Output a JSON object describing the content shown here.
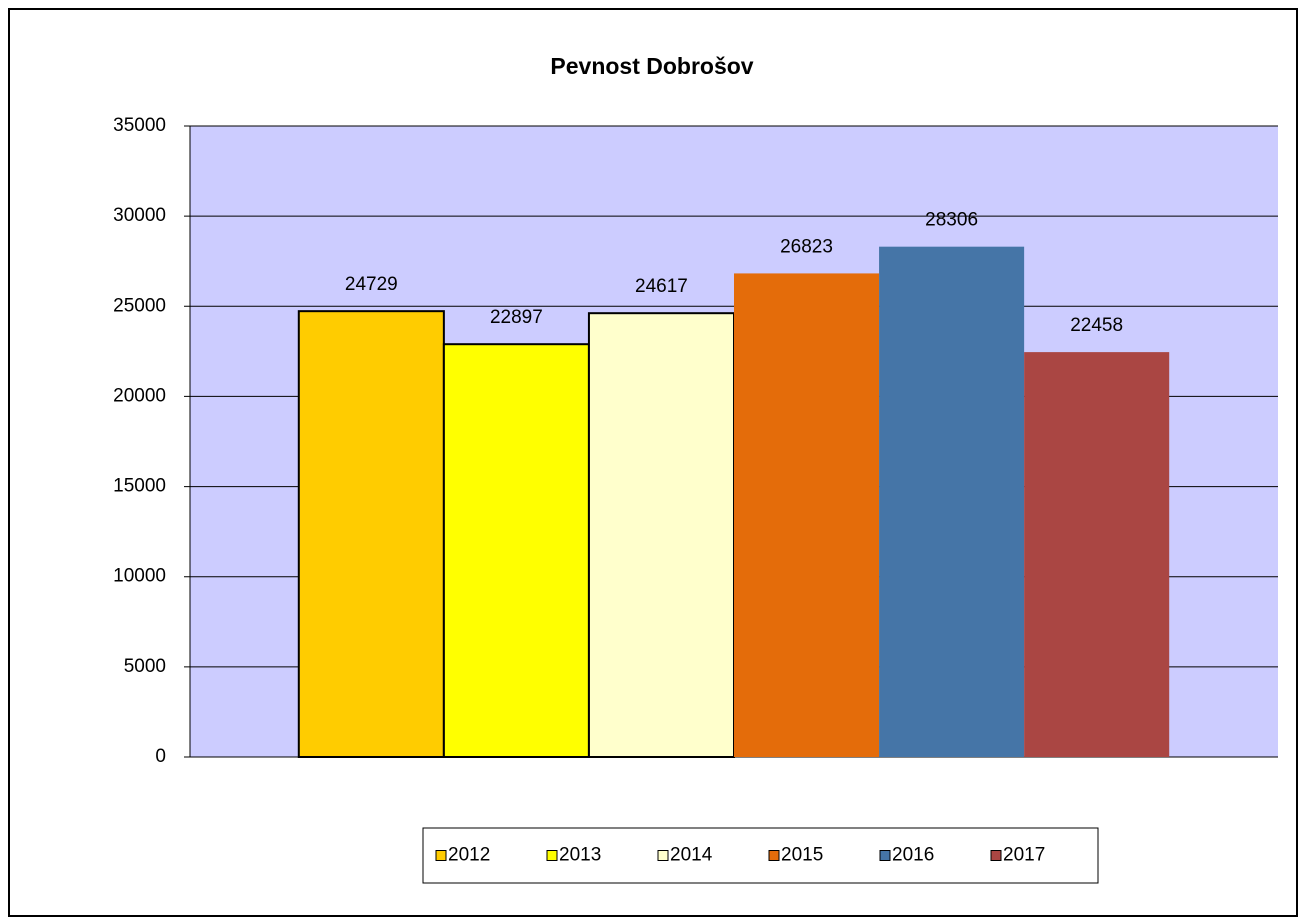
{
  "chart_data": {
    "type": "bar",
    "title": "Pevnost Dobrošov",
    "categories": [
      null
    ],
    "series": [
      {
        "name": "2012",
        "color": "#FFCC00",
        "edgecolor": "#000000",
        "values": [
          24729
        ]
      },
      {
        "name": "2013",
        "color": "#FFFF00",
        "edgecolor": "#000000",
        "values": [
          22897
        ]
      },
      {
        "name": "2014",
        "color": "#FFFFCC",
        "edgecolor": "#000000",
        "values": [
          24617
        ]
      },
      {
        "name": "2015",
        "color": "#E46C0A",
        "values": [
          26823
        ]
      },
      {
        "name": "2016",
        "color": "#4575A7",
        "values": [
          28306
        ]
      },
      {
        "name": "2017",
        "color": "#AA4643",
        "values": [
          22458
        ]
      }
    ],
    "ylim": [
      0,
      35000
    ],
    "yticks": [
      0,
      5000,
      10000,
      15000,
      20000,
      25000,
      30000,
      35000
    ],
    "grid": true,
    "plot_background": "#CCCCFF",
    "legend": "bottom"
  }
}
